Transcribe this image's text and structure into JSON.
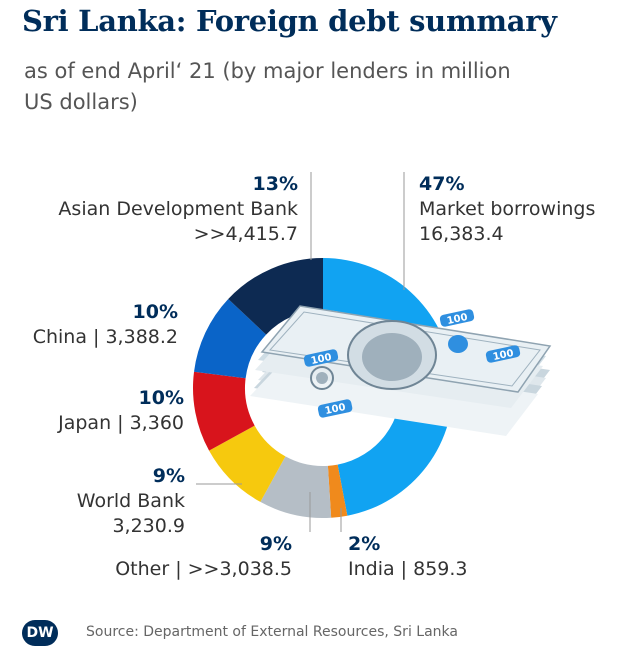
{
  "chart_data": {
    "type": "pie",
    "variant": "donut",
    "title": "Sri Lanka: Foreign debt summary",
    "subtitle": "as of end April‘ 21 (by major lenders in million US dollars)",
    "slices": [
      {
        "key": "market",
        "name": "Market borrowings",
        "value_text": "16,383.4",
        "value": 16383.4,
        "percent": "47%",
        "pct_value": 47,
        "color": "#11a3f2"
      },
      {
        "key": "india",
        "name": "India",
        "value_text": "859.3",
        "value": 859.3,
        "percent": "2%",
        "pct_value": 2,
        "color": "#f08a1c"
      },
      {
        "key": "other",
        "name": "Other",
        "value_text": ">>3,038.5",
        "value": 3038.5,
        "percent": "9%",
        "pct_value": 9,
        "color": "#b5bec6"
      },
      {
        "key": "world_bank",
        "name": "World Bank",
        "value_text": "3,230.9",
        "value": 3230.9,
        "percent": "9%",
        "pct_value": 9,
        "color": "#f6c90e"
      },
      {
        "key": "japan",
        "name": "Japan",
        "value_text": "3,360",
        "value": 3360,
        "percent": "10%",
        "pct_value": 10,
        "color": "#d8141c"
      },
      {
        "key": "china",
        "name": "China",
        "value_text": "3,388.2",
        "value": 3388.2,
        "percent": "10%",
        "pct_value": 10,
        "color": "#0a64c8"
      },
      {
        "key": "adb",
        "name": "Asian Development Bank",
        "value_text": ">>4,415.7",
        "value": 4415.7,
        "percent": "13%",
        "pct_value": 13,
        "color": "#0d2a52"
      }
    ]
  },
  "labels": {
    "market": {
      "percent": "47%",
      "line1": "Market borrowings",
      "line2": "16,383.4"
    },
    "adb": {
      "percent": "13%",
      "line1": "Asian Development Bank",
      "line2": ">>4,415.7"
    },
    "china": {
      "percent": "10%",
      "line1": "China | 3,388.2"
    },
    "japan": {
      "percent": "10%",
      "line1": "Japan | 3,360"
    },
    "world_bank": {
      "percent": "9%",
      "line1": "World Bank",
      "line2": "3,230.9"
    },
    "other": {
      "percent": "9%",
      "line1": "Other |  >>3,038.5"
    },
    "india": {
      "percent": "2%",
      "line1": "India | 859.3"
    }
  },
  "illustration": {
    "note_denomination": "100"
  },
  "footer": {
    "logo": "DW",
    "source": "Source: Department of External Resources, Sri Lanka"
  }
}
